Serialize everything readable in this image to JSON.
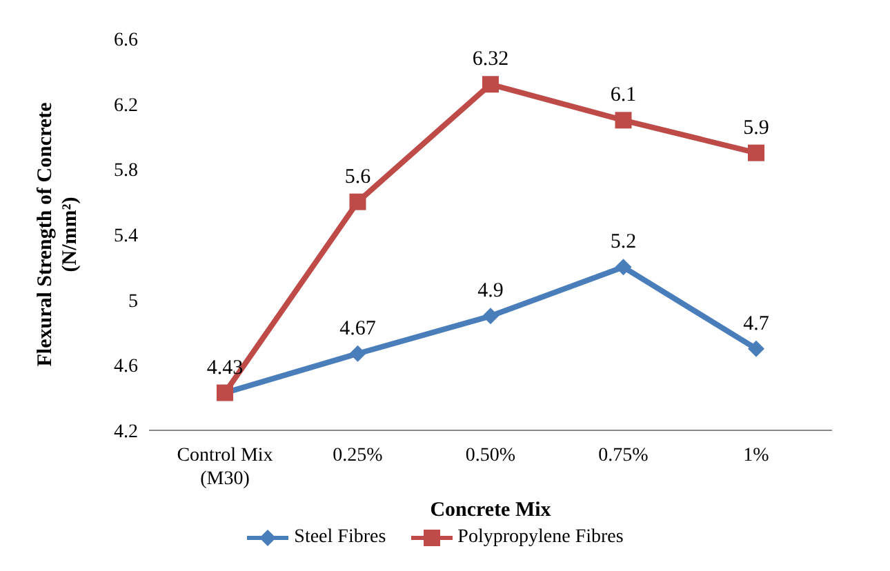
{
  "chart_data": {
    "type": "line",
    "xlabel": "Concrete Mix",
    "ylabel": "Flexural Strength of Concrete (N/mm²)",
    "categories": [
      "Control Mix (M30)",
      "0.25%",
      "0.50%",
      "0.75%",
      "1%"
    ],
    "series": [
      {
        "name": "Steel Fibres",
        "color": "#4a7ebb",
        "marker": "diamond",
        "values": [
          4.43,
          4.67,
          4.9,
          5.2,
          4.7
        ],
        "value_labels": [
          null,
          "4.67",
          "4.9",
          "5.2",
          "4.7"
        ]
      },
      {
        "name": "Polypropylene Fibres",
        "color": "#be4b48",
        "marker": "square",
        "values": [
          4.43,
          5.6,
          6.32,
          6.1,
          5.9
        ],
        "value_labels": [
          "4.43",
          "5.6",
          "6.32",
          "6.1",
          "5.9"
        ]
      }
    ],
    "ylim": [
      4.2,
      6.6
    ],
    "yticks": [
      4.2,
      4.6,
      5,
      5.4,
      5.8,
      6.2,
      6.6
    ],
    "grid": false,
    "legend": "bottom",
    "line_style": "solid"
  }
}
